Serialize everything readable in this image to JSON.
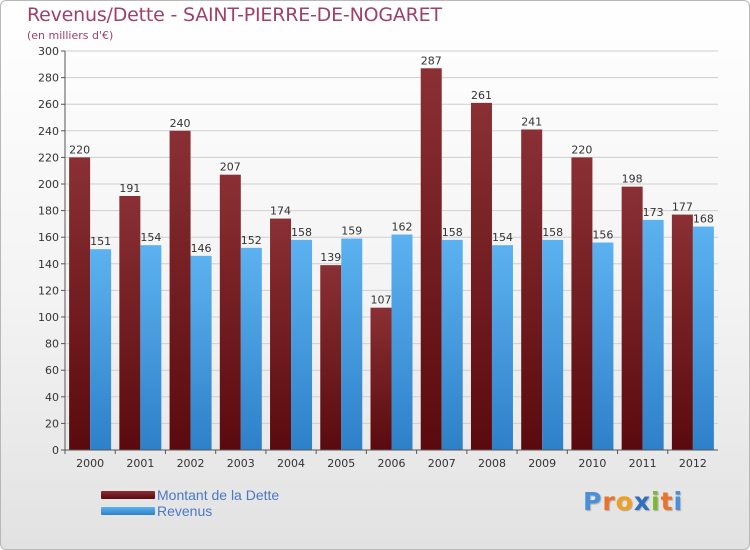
{
  "header": {
    "title": "Revenus/Dette - SAINT-PIERRE-DE-NOGARET",
    "subtitle": "(en milliers d'€)"
  },
  "legend": {
    "items": [
      {
        "label": "Montant de la Dette",
        "color": "#7a1e22"
      },
      {
        "label": "Revenus",
        "color": "#4aa0e0"
      }
    ]
  },
  "logo": {
    "text": "Proxiti",
    "letters": [
      {
        "ch": "P",
        "color": "#4a8fd8"
      },
      {
        "ch": "r",
        "color": "#e8732a"
      },
      {
        "ch": "o",
        "color": "#f0a020"
      },
      {
        "ch": "x",
        "color": "#2e6fc0"
      },
      {
        "ch": "i",
        "color": "#7cb832"
      },
      {
        "ch": "t",
        "color": "#e8732a"
      },
      {
        "ch": "i",
        "color": "#4a8fd8"
      }
    ]
  },
  "chart_data": {
    "type": "bar",
    "title": "Revenus/Dette - SAINT-PIERRE-DE-NOGARET",
    "subtitle": "(en milliers d'€)",
    "categories": [
      "2000",
      "2001",
      "2002",
      "2003",
      "2004",
      "2005",
      "2006",
      "2007",
      "2008",
      "2009",
      "2010",
      "2011",
      "2012"
    ],
    "series": [
      {
        "name": "Montant de la Dette",
        "color": "#7a1e22",
        "values": [
          220,
          191,
          240,
          207,
          174,
          139,
          107,
          287,
          261,
          241,
          220,
          198,
          177
        ]
      },
      {
        "name": "Revenus",
        "color": "#4aa0e0",
        "values": [
          151,
          154,
          146,
          152,
          158,
          159,
          162,
          158,
          154,
          158,
          156,
          173,
          168
        ]
      }
    ],
    "ylim": [
      0,
      300
    ],
    "ytick_step": 20,
    "grid": true,
    "legend_position": "bottom-left"
  }
}
